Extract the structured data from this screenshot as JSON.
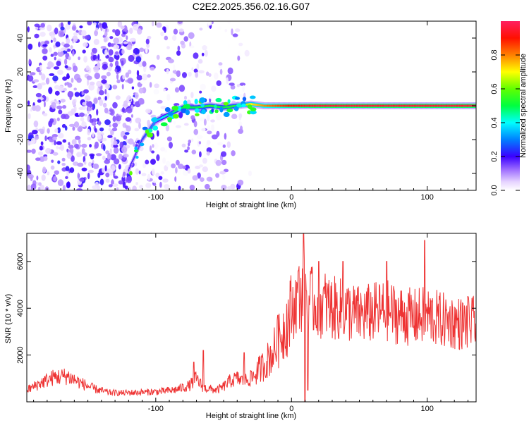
{
  "title": "C2E2.2025.356.02.16.G07",
  "chart_data": [
    {
      "type": "heatmap",
      "name": "spectrogram",
      "xlabel": "Height of straight line (km)",
      "ylabel": "Frequency (Hz)",
      "xlim": [
        -195,
        136
      ],
      "ylim": [
        -50,
        50
      ],
      "xticks": [
        -100,
        0,
        100
      ],
      "yticks": [
        -40,
        -20,
        0,
        20,
        40
      ],
      "colorbar": {
        "label": "Normalized spectral amplitude",
        "range": [
          0.0,
          1.0
        ],
        "ticks": [
          0.0,
          0.2,
          0.4,
          0.6,
          0.8
        ],
        "tick_labels": [
          "0.0",
          "0.2",
          "0.4",
          "0.6",
          "0.8"
        ]
      },
      "trace": {
        "description": "strong signal along the carrier line",
        "x": [
          -120,
          -110,
          -100,
          -90,
          -80,
          -70,
          -60,
          -50,
          -40,
          -30,
          -20,
          -10,
          0,
          20,
          40,
          60,
          80,
          90,
          100,
          120,
          136
        ],
        "y": [
          -38,
          -20,
          -9,
          -5,
          -1,
          -1,
          0,
          -1,
          0,
          1,
          0,
          0,
          0,
          0,
          0,
          0,
          0,
          0,
          0,
          0,
          0
        ],
        "amplitude": [
          0.2,
          0.25,
          0.35,
          0.45,
          0.5,
          0.5,
          0.55,
          0.5,
          0.55,
          0.7,
          0.8,
          0.85,
          0.9,
          0.95,
          0.95,
          0.95,
          0.95,
          0.95,
          0.95,
          0.95,
          0.95
        ]
      },
      "background_noise": {
        "x_range": [
          -195,
          -30
        ],
        "amplitude_range": [
          0.0,
          0.2
        ]
      }
    },
    {
      "type": "line",
      "name": "snr",
      "xlabel": "Height of straight line (km)",
      "ylabel": "SNR (10 * v/v)",
      "xlim": [
        -195,
        136
      ],
      "ylim": [
        0,
        7200
      ],
      "xticks": [
        -100,
        0,
        100
      ],
      "yticks": [
        2000,
        4000,
        6000
      ],
      "color": "#ee3333",
      "series": [
        {
          "name": "SNR",
          "x": [
            -195,
            -185,
            -175,
            -165,
            -155,
            -145,
            -135,
            -125,
            -115,
            -105,
            -95,
            -85,
            -75,
            -70,
            -65,
            -60,
            -55,
            -50,
            -45,
            -40,
            -35,
            -30,
            -25,
            -20,
            -15,
            -10,
            -5,
            0,
            5,
            10,
            15,
            20,
            25,
            30,
            40,
            50,
            60,
            70,
            80,
            90,
            100,
            110,
            120,
            130,
            136
          ],
          "y": [
            500,
            800,
            1050,
            1100,
            800,
            550,
            400,
            380,
            400,
            420,
            450,
            520,
            700,
            1000,
            600,
            550,
            500,
            650,
            900,
            1000,
            900,
            1000,
            1300,
            1600,
            2000,
            2500,
            3200,
            3900,
            4500,
            4600,
            4300,
            4100,
            4200,
            4000,
            3900,
            3700,
            3800,
            3900,
            3700,
            3600,
            3700,
            3500,
            3400,
            3300,
            3400
          ],
          "spikes": [
            {
              "x": -72,
              "y": 1700
            },
            {
              "x": -65,
              "y": 2200
            },
            {
              "x": -35,
              "y": 2100
            },
            {
              "x": -10,
              "y": 3700
            },
            {
              "x": 5,
              "y": 5600
            },
            {
              "x": 9,
              "y": 7200
            },
            {
              "x": 20,
              "y": 6000
            },
            {
              "x": 38,
              "y": 6000
            },
            {
              "x": 70,
              "y": 6000
            },
            {
              "x": 98,
              "y": 6900
            },
            {
              "x": 130,
              "y": 4500
            }
          ],
          "dips": [
            {
              "x": 10,
              "y": 0
            },
            {
              "x": 12,
              "y": 500
            }
          ]
        }
      ]
    }
  ]
}
